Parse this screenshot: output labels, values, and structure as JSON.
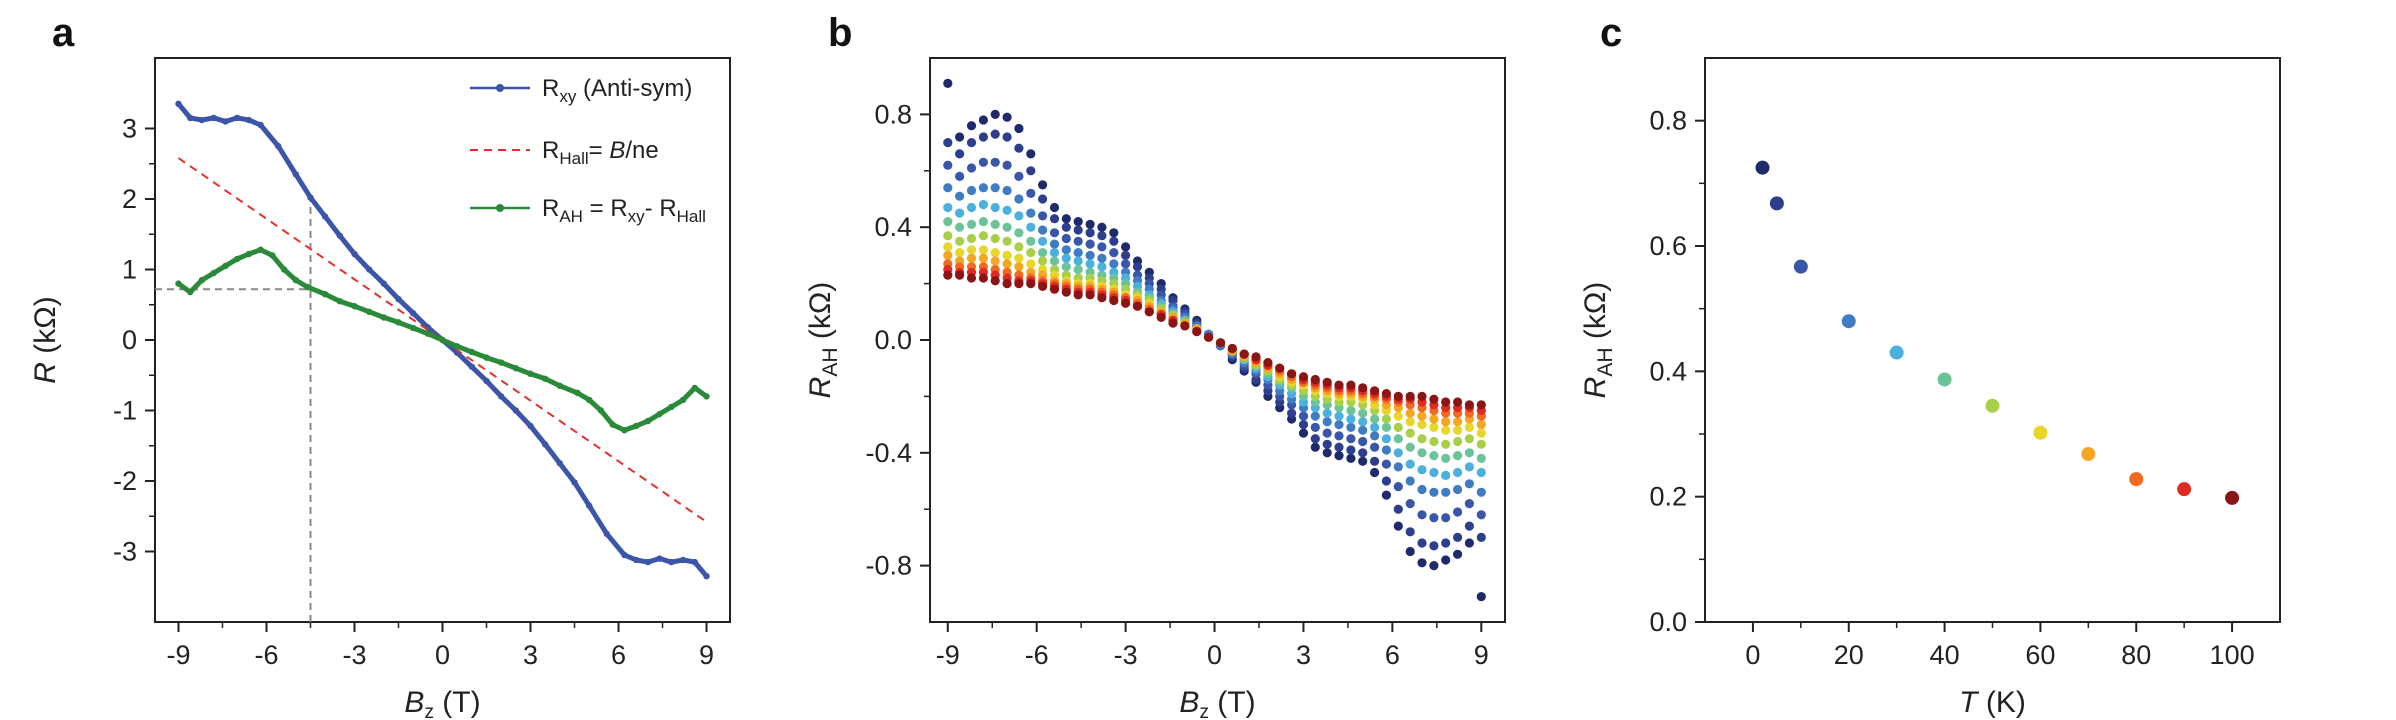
{
  "panels": {
    "a": "a",
    "b": "b",
    "c": "c"
  },
  "chart_data": [
    {
      "id": "a",
      "type": "line",
      "xlabel": "B_z (T)",
      "xlabel_main": "B",
      "xlabel_sub": "z",
      "xlabel_unit": "(T)",
      "ylabel": "R (kΩ)",
      "ylabel_main": "R",
      "ylabel_unit": "(kΩ)",
      "xlim": [
        -9.8,
        9.8
      ],
      "ylim": [
        -4.0,
        4.0
      ],
      "xticks": [
        -9,
        -6,
        -3,
        0,
        3,
        6,
        9
      ],
      "xtick_labels": [
        "-9",
        "-6",
        "-3",
        "0",
        "3",
        "6",
        "9"
      ],
      "yticks": [
        -3,
        -2,
        -1,
        0,
        1,
        2,
        3
      ],
      "ytick_labels": [
        "-3",
        "-2",
        "-1",
        "0",
        "1",
        "2",
        "3"
      ],
      "legend_position": "top-right",
      "series": [
        {
          "name": "Rxy (Anti-sym)",
          "legend_main": "R",
          "legend_sub": "xy",
          "legend_rest": " (Anti-sym)",
          "color": "#3b55a8",
          "style": "solid-dots",
          "x": [
            -9,
            -8.6,
            -8.2,
            -7.8,
            -7.4,
            -7.0,
            -6.6,
            -6.2,
            -5.6,
            -5.0,
            -4.5,
            -4.0,
            -3.5,
            -3.0,
            -2.5,
            -2.0,
            -1.5,
            -1.0,
            -0.5,
            0,
            0.5,
            1.0,
            1.5,
            2.0,
            2.5,
            3.0,
            3.5,
            4.0,
            4.5,
            5.0,
            5.6,
            6.2,
            6.6,
            7.0,
            7.4,
            7.8,
            8.2,
            8.6,
            9
          ],
          "y": [
            3.35,
            3.15,
            3.12,
            3.15,
            3.1,
            3.15,
            3.12,
            3.05,
            2.75,
            2.35,
            2.02,
            1.75,
            1.48,
            1.22,
            1.0,
            0.8,
            0.58,
            0.38,
            0.18,
            0,
            -0.18,
            -0.38,
            -0.58,
            -0.8,
            -1.0,
            -1.22,
            -1.48,
            -1.75,
            -2.02,
            -2.35,
            -2.75,
            -3.05,
            -3.12,
            -3.15,
            -3.1,
            -3.15,
            -3.12,
            -3.15,
            -3.35
          ]
        },
        {
          "name": "RHall = B/ne",
          "legend_main": "R",
          "legend_sub": "Hall",
          "legend_rest": "= B/ne",
          "color": "#e8302a",
          "style": "dashed",
          "x": [
            -9,
            9
          ],
          "y": [
            2.58,
            -2.58
          ]
        },
        {
          "name": "RAH = Rxy - RHall",
          "legend_main": "R",
          "legend_sub": "AH",
          "legend_rest": " = R",
          "legend_sub2": "xy",
          "legend_rest2": "- R",
          "legend_sub3": "Hall",
          "color": "#2a8a3a",
          "style": "solid-dots",
          "x": [
            -9,
            -8.6,
            -8.2,
            -7.8,
            -7.4,
            -7.0,
            -6.6,
            -6.2,
            -5.8,
            -5.4,
            -5.0,
            -4.6,
            -4.0,
            -3.5,
            -3.0,
            -2.5,
            -2.0,
            -1.5,
            -1.0,
            -0.5,
            0,
            0.5,
            1.0,
            1.5,
            2.0,
            2.5,
            3.0,
            3.5,
            4.0,
            4.6,
            5.0,
            5.4,
            5.8,
            6.2,
            6.6,
            7.0,
            7.4,
            7.8,
            8.2,
            8.6,
            9
          ],
          "y": [
            0.8,
            0.68,
            0.85,
            0.95,
            1.05,
            1.15,
            1.22,
            1.28,
            1.2,
            1.0,
            0.85,
            0.75,
            0.65,
            0.55,
            0.48,
            0.4,
            0.32,
            0.25,
            0.17,
            0.09,
            0,
            -0.09,
            -0.17,
            -0.25,
            -0.32,
            -0.4,
            -0.48,
            -0.55,
            -0.65,
            -0.75,
            -0.85,
            -1.0,
            -1.2,
            -1.28,
            -1.22,
            -1.15,
            -1.05,
            -0.95,
            -0.85,
            -0.68,
            -0.8
          ]
        }
      ],
      "guides": {
        "x": -4.5,
        "y": 0.72
      }
    },
    {
      "id": "b",
      "type": "scatter",
      "xlabel": "B_z (T)",
      "xlabel_main": "B",
      "xlabel_sub": "z",
      "xlabel_unit": "(T)",
      "ylabel": "R_AH (kΩ)",
      "ylabel_main": "R",
      "ylabel_sub": "AH",
      "ylabel_unit": "(kΩ)",
      "xlim": [
        -9.6,
        9.8
      ],
      "ylim": [
        -1.0,
        1.0
      ],
      "xticks": [
        -9,
        -6,
        -3,
        0,
        3,
        6,
        9
      ],
      "xtick_labels": [
        "-9",
        "-6",
        "-3",
        "0",
        "3",
        "6",
        "9"
      ],
      "yticks": [
        -0.8,
        -0.4,
        0.0,
        0.4,
        0.8
      ],
      "ytick_labels": [
        "-0.8",
        "-0.4",
        "0.0",
        "0.4",
        "0.8"
      ],
      "x": [
        -9.0,
        -8.6,
        -8.2,
        -7.8,
        -7.4,
        -7.0,
        -6.6,
        -6.2,
        -5.8,
        -5.4,
        -5.0,
        -4.6,
        -4.2,
        -3.8,
        -3.4,
        -3.0,
        -2.6,
        -2.2,
        -1.8,
        -1.4,
        -1.0,
        -0.6,
        -0.2,
        0.2,
        0.6,
        1.0,
        1.4,
        1.8,
        2.2,
        2.6,
        3.0,
        3.4,
        3.8,
        4.2,
        4.6,
        5.0,
        5.4,
        5.8,
        6.2,
        6.6,
        7.0,
        7.4,
        7.8,
        8.2,
        8.6,
        9.0
      ],
      "series": [
        {
          "T": 2,
          "color": "#1f2a6b",
          "y": [
            0.91,
            0.72,
            0.76,
            0.78,
            0.8,
            0.79,
            0.75,
            0.66,
            0.55,
            0.47,
            0.43,
            0.42,
            0.41,
            0.4,
            0.38,
            0.33,
            0.28,
            0.24,
            0.2,
            0.15,
            0.11,
            0.07,
            0.02,
            -0.02,
            -0.07,
            -0.11,
            -0.15,
            -0.2,
            -0.24,
            -0.28,
            -0.33,
            -0.38,
            -0.4,
            -0.41,
            -0.42,
            -0.43,
            -0.47,
            -0.55,
            -0.66,
            -0.75,
            -0.79,
            -0.8,
            -0.78,
            -0.76,
            -0.72,
            -0.91
          ]
        },
        {
          "T": 5,
          "color": "#2d3e8c",
          "y": [
            0.7,
            0.66,
            0.7,
            0.72,
            0.73,
            0.72,
            0.68,
            0.6,
            0.5,
            0.43,
            0.4,
            0.39,
            0.38,
            0.37,
            0.35,
            0.3,
            0.26,
            0.22,
            0.18,
            0.14,
            0.1,
            0.06,
            0.02,
            -0.02,
            -0.06,
            -0.1,
            -0.14,
            -0.18,
            -0.22,
            -0.26,
            -0.3,
            -0.35,
            -0.37,
            -0.38,
            -0.39,
            -0.4,
            -0.43,
            -0.5,
            -0.6,
            -0.68,
            -0.72,
            -0.73,
            -0.72,
            -0.7,
            -0.66,
            -0.7
          ]
        },
        {
          "T": 10,
          "color": "#3a56a8",
          "y": [
            0.62,
            0.58,
            0.61,
            0.63,
            0.63,
            0.62,
            0.58,
            0.52,
            0.44,
            0.38,
            0.36,
            0.35,
            0.34,
            0.33,
            0.31,
            0.27,
            0.23,
            0.2,
            0.16,
            0.12,
            0.09,
            0.05,
            0.02,
            -0.02,
            -0.05,
            -0.09,
            -0.12,
            -0.16,
            -0.2,
            -0.23,
            -0.27,
            -0.31,
            -0.33,
            -0.34,
            -0.35,
            -0.36,
            -0.38,
            -0.44,
            -0.52,
            -0.58,
            -0.62,
            -0.63,
            -0.63,
            -0.61,
            -0.58,
            -0.62
          ]
        },
        {
          "T": 20,
          "color": "#3f7cc4",
          "y": [
            0.54,
            0.51,
            0.53,
            0.54,
            0.54,
            0.53,
            0.5,
            0.45,
            0.39,
            0.34,
            0.32,
            0.31,
            0.3,
            0.29,
            0.27,
            0.24,
            0.21,
            0.18,
            0.14,
            0.11,
            0.08,
            0.05,
            0.02,
            -0.02,
            -0.05,
            -0.08,
            -0.11,
            -0.14,
            -0.18,
            -0.21,
            -0.24,
            -0.27,
            -0.29,
            -0.3,
            -0.31,
            -0.32,
            -0.34,
            -0.39,
            -0.45,
            -0.5,
            -0.53,
            -0.54,
            -0.54,
            -0.53,
            -0.51,
            -0.54
          ]
        },
        {
          "T": 30,
          "color": "#4bb0de",
          "y": [
            0.47,
            0.45,
            0.47,
            0.48,
            0.47,
            0.46,
            0.44,
            0.4,
            0.35,
            0.31,
            0.29,
            0.28,
            0.27,
            0.26,
            0.24,
            0.22,
            0.19,
            0.16,
            0.13,
            0.1,
            0.07,
            0.04,
            0.01,
            -0.01,
            -0.04,
            -0.07,
            -0.1,
            -0.13,
            -0.16,
            -0.19,
            -0.22,
            -0.24,
            -0.26,
            -0.27,
            -0.28,
            -0.29,
            -0.31,
            -0.35,
            -0.4,
            -0.44,
            -0.46,
            -0.47,
            -0.48,
            -0.47,
            -0.45,
            -0.47
          ]
        },
        {
          "T": 40,
          "color": "#6cc39a",
          "y": [
            0.42,
            0.4,
            0.41,
            0.42,
            0.41,
            0.4,
            0.38,
            0.35,
            0.31,
            0.28,
            0.26,
            0.25,
            0.24,
            0.23,
            0.22,
            0.2,
            0.17,
            0.15,
            0.12,
            0.09,
            0.07,
            0.04,
            0.01,
            -0.01,
            -0.04,
            -0.07,
            -0.09,
            -0.12,
            -0.15,
            -0.17,
            -0.2,
            -0.22,
            -0.23,
            -0.24,
            -0.25,
            -0.26,
            -0.28,
            -0.31,
            -0.35,
            -0.38,
            -0.4,
            -0.41,
            -0.42,
            -0.41,
            -0.4,
            -0.42
          ]
        },
        {
          "T": 50,
          "color": "#a8cf4a",
          "y": [
            0.37,
            0.35,
            0.36,
            0.37,
            0.36,
            0.35,
            0.33,
            0.31,
            0.28,
            0.25,
            0.23,
            0.22,
            0.22,
            0.21,
            0.2,
            0.18,
            0.16,
            0.14,
            0.11,
            0.09,
            0.06,
            0.04,
            0.01,
            -0.01,
            -0.04,
            -0.06,
            -0.09,
            -0.11,
            -0.14,
            -0.16,
            -0.18,
            -0.2,
            -0.21,
            -0.22,
            -0.22,
            -0.23,
            -0.25,
            -0.28,
            -0.31,
            -0.33,
            -0.35,
            -0.36,
            -0.37,
            -0.36,
            -0.35,
            -0.37
          ]
        },
        {
          "T": 60,
          "color": "#e8d62a",
          "y": [
            0.33,
            0.31,
            0.32,
            0.32,
            0.31,
            0.3,
            0.29,
            0.27,
            0.25,
            0.23,
            0.21,
            0.2,
            0.2,
            0.19,
            0.18,
            0.16,
            0.15,
            0.13,
            0.1,
            0.08,
            0.06,
            0.04,
            0.01,
            -0.01,
            -0.04,
            -0.06,
            -0.08,
            -0.1,
            -0.13,
            -0.15,
            -0.16,
            -0.18,
            -0.19,
            -0.2,
            -0.2,
            -0.21,
            -0.23,
            -0.25,
            -0.27,
            -0.29,
            -0.3,
            -0.31,
            -0.32,
            -0.32,
            -0.31,
            -0.33
          ]
        },
        {
          "T": 70,
          "color": "#f5a623",
          "y": [
            0.3,
            0.28,
            0.29,
            0.29,
            0.28,
            0.27,
            0.26,
            0.24,
            0.23,
            0.21,
            0.2,
            0.19,
            0.19,
            0.18,
            0.17,
            0.15,
            0.14,
            0.12,
            0.1,
            0.08,
            0.06,
            0.04,
            0.01,
            -0.01,
            -0.04,
            -0.06,
            -0.08,
            -0.1,
            -0.12,
            -0.14,
            -0.15,
            -0.17,
            -0.18,
            -0.19,
            -0.19,
            -0.2,
            -0.21,
            -0.23,
            -0.24,
            -0.26,
            -0.27,
            -0.28,
            -0.29,
            -0.29,
            -0.28,
            -0.3
          ]
        },
        {
          "T": 80,
          "color": "#f06b1f",
          "y": [
            0.27,
            0.26,
            0.26,
            0.26,
            0.25,
            0.24,
            0.23,
            0.22,
            0.21,
            0.2,
            0.19,
            0.18,
            0.18,
            0.17,
            0.16,
            0.15,
            0.13,
            0.11,
            0.09,
            0.07,
            0.05,
            0.03,
            0.01,
            -0.01,
            -0.03,
            -0.05,
            -0.07,
            -0.09,
            -0.11,
            -0.13,
            -0.15,
            -0.16,
            -0.17,
            -0.18,
            -0.18,
            -0.19,
            -0.2,
            -0.21,
            -0.22,
            -0.23,
            -0.24,
            -0.25,
            -0.26,
            -0.26,
            -0.26,
            -0.27
          ]
        },
        {
          "T": 90,
          "color": "#e02a22",
          "y": [
            0.25,
            0.24,
            0.24,
            0.24,
            0.23,
            0.22,
            0.21,
            0.21,
            0.2,
            0.19,
            0.18,
            0.17,
            0.17,
            0.16,
            0.15,
            0.14,
            0.12,
            0.1,
            0.09,
            0.07,
            0.05,
            0.03,
            0.01,
            -0.01,
            -0.03,
            -0.05,
            -0.07,
            -0.09,
            -0.1,
            -0.12,
            -0.14,
            -0.15,
            -0.16,
            -0.17,
            -0.17,
            -0.18,
            -0.19,
            -0.2,
            -0.21,
            -0.21,
            -0.22,
            -0.23,
            -0.24,
            -0.24,
            -0.24,
            -0.25
          ]
        },
        {
          "T": 100,
          "color": "#8b1414",
          "y": [
            0.23,
            0.23,
            0.22,
            0.22,
            0.21,
            0.2,
            0.2,
            0.2,
            0.19,
            0.18,
            0.17,
            0.16,
            0.16,
            0.15,
            0.14,
            0.13,
            0.12,
            0.1,
            0.08,
            0.06,
            0.05,
            0.03,
            0.01,
            -0.01,
            -0.03,
            -0.05,
            -0.06,
            -0.08,
            -0.1,
            -0.12,
            -0.13,
            -0.14,
            -0.15,
            -0.16,
            -0.16,
            -0.17,
            -0.18,
            -0.19,
            -0.2,
            -0.2,
            -0.2,
            -0.21,
            -0.22,
            -0.22,
            -0.23,
            -0.23
          ]
        }
      ]
    },
    {
      "id": "c",
      "type": "scatter",
      "xlabel": "T (K)",
      "xlabel_main": "T",
      "xlabel_unit": "(K)",
      "ylabel": "R_AH (kΩ)",
      "ylabel_main": "R",
      "ylabel_sub": "AH",
      "ylabel_unit": "(kΩ)",
      "xlim": [
        -10,
        110
      ],
      "ylim": [
        0.0,
        0.9
      ],
      "xticks": [
        0,
        20,
        40,
        60,
        80,
        100
      ],
      "xtick_labels": [
        "0",
        "20",
        "40",
        "60",
        "80",
        "100"
      ],
      "yticks": [
        0.0,
        0.2,
        0.4,
        0.6,
        0.8
      ],
      "ytick_labels": [
        "0.0",
        "0.2",
        "0.4",
        "0.6",
        "0.8"
      ],
      "points": [
        {
          "x": 2,
          "y": 0.725,
          "color": "#1f2a6b"
        },
        {
          "x": 5,
          "y": 0.668,
          "color": "#2d3e8c"
        },
        {
          "x": 10,
          "y": 0.567,
          "color": "#3a56a8"
        },
        {
          "x": 20,
          "y": 0.48,
          "color": "#3f7cc4"
        },
        {
          "x": 30,
          "y": 0.43,
          "color": "#4bb0de"
        },
        {
          "x": 40,
          "y": 0.387,
          "color": "#6cc39a"
        },
        {
          "x": 50,
          "y": 0.345,
          "color": "#a8cf4a"
        },
        {
          "x": 60,
          "y": 0.302,
          "color": "#e8d62a"
        },
        {
          "x": 70,
          "y": 0.268,
          "color": "#f5a623"
        },
        {
          "x": 80,
          "y": 0.228,
          "color": "#f06b1f"
        },
        {
          "x": 90,
          "y": 0.212,
          "color": "#e02a22"
        },
        {
          "x": 100,
          "y": 0.198,
          "color": "#8b1414"
        }
      ]
    }
  ]
}
